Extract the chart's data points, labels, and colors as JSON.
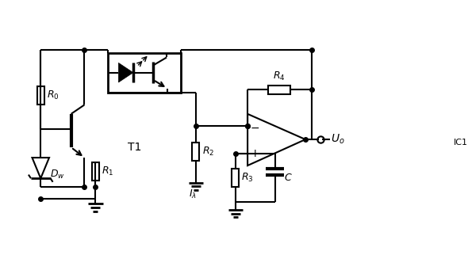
{
  "bg_color": "#ffffff",
  "line_color": "#000000",
  "line_width": 1.5,
  "figsize": [
    5.9,
    3.46
  ],
  "dpi": 100
}
